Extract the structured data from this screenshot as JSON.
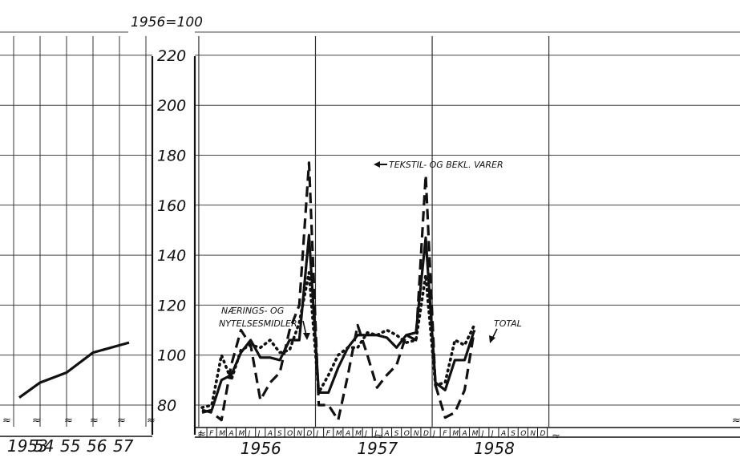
{
  "chart_data": {
    "type": "line",
    "unit_label": "1956=100",
    "ylim": [
      70,
      220
    ],
    "y_ticks": [
      "80",
      "100",
      "120",
      "140",
      "160",
      "180",
      "200",
      "220"
    ],
    "break_symbol": "≈",
    "annual": {
      "x_labels": [
        "1953",
        "54",
        "55",
        "56",
        "57"
      ],
      "x": [
        1953,
        1954,
        1955,
        1956,
        1957
      ],
      "values": [
        83,
        89,
        93,
        101,
        105
      ]
    },
    "monthly": {
      "month_labels": [
        "J",
        "F",
        "M",
        "A",
        "M",
        "J",
        "J",
        "A",
        "S",
        "O",
        "N",
        "D",
        "J",
        "F",
        "M",
        "A",
        "M",
        "J",
        "J",
        "A",
        "S",
        "O",
        "N",
        "D",
        "J",
        "F",
        "M",
        "A",
        "M",
        "J",
        "J",
        "A",
        "S",
        "O",
        "N",
        "D"
      ],
      "year_labels": [
        "1956",
        "1957",
        "1958"
      ],
      "series": [
        {
          "name": "TOTAL",
          "style": "solid",
          "values": [
            77,
            78,
            90,
            92,
            101,
            106,
            99,
            99,
            98,
            106,
            106,
            148,
            85,
            85,
            95,
            103,
            108,
            108,
            108,
            107,
            103,
            108,
            109,
            147,
            89,
            86,
            98,
            98,
            110
          ]
        },
        {
          "name": "TEKSTIL- OG BEKL. VARER",
          "style": "dashed",
          "values": [
            78,
            77,
            74,
            96,
            110,
            104,
            82,
            89,
            93,
            110,
            120,
            177,
            80,
            80,
            74,
            92,
            112,
            100,
            87,
            92,
            96,
            108,
            106,
            172,
            88,
            75,
            77,
            86,
            110
          ]
        },
        {
          "name": "NÆRINGS- OG NYTELSESMIDLER",
          "style": "dotted",
          "values": [
            79,
            80,
            100,
            90,
            102,
            104,
            103,
            106,
            101,
            102,
            113,
            133,
            85,
            92,
            100,
            103,
            103,
            109,
            108,
            110,
            108,
            105,
            106,
            132,
            88,
            89,
            106,
            104,
            112
          ]
        }
      ],
      "annotations": {
        "textile": "TEKSTIL- OG  BEKL. VARER",
        "food_line1": "NÆRINGS- OG",
        "food_line2": "NYTELSESMIDLER",
        "total": "TOTAL"
      }
    }
  }
}
